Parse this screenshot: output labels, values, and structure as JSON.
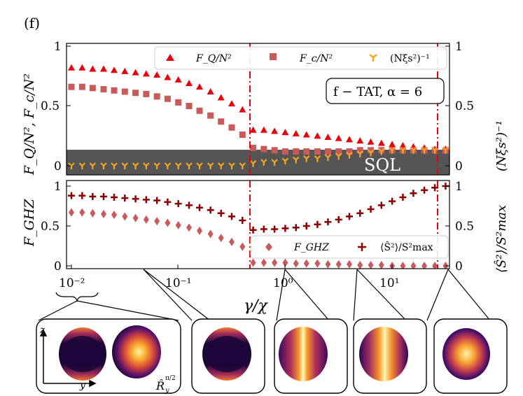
{
  "panel_label": "(f)",
  "colors": {
    "fq": "#e8000b",
    "fc": "#c85a5a",
    "squeeze": "#f5a623",
    "ghz": "#c85a5a",
    "s2": "#8b0000",
    "sql_band": "#555555",
    "vline": "#e8000b"
  },
  "chart_data": [
    {
      "type": "scatter",
      "name": "top-panel",
      "title": "f − TAT, α = 6",
      "xlabel": "γ/χ",
      "ylabel_left": "F_Q/N², F_c/N²",
      "ylabel_right": "(Nξs²)⁻¹",
      "xscale": "log",
      "xlim": [
        0.008,
        45
      ],
      "ylim": [
        -0.1,
        1.05
      ],
      "yticks": [
        0,
        0.5,
        1
      ],
      "ytick_labels": [
        "0",
        "0.5",
        "1"
      ],
      "band": {
        "label": "SQL",
        "ymin": -0.1,
        "ymax": 0.125
      },
      "vlines": [
        0.45,
        30
      ],
      "legend": [
        "F_Q/N²",
        "F_c/N²",
        "(Nξs²)⁻¹"
      ],
      "x": [
        0.01,
        0.0126,
        0.0158,
        0.02,
        0.0251,
        0.0316,
        0.0398,
        0.0501,
        0.0631,
        0.0794,
        0.1,
        0.126,
        0.158,
        0.2,
        0.251,
        0.316,
        0.398,
        0.501,
        0.631,
        0.794,
        1.0,
        1.26,
        1.58,
        2.0,
        2.51,
        3.16,
        3.98,
        5.01,
        6.31,
        7.94,
        10.0,
        12.6,
        15.8,
        20.0,
        25.1,
        31.6,
        39.8
      ],
      "series": [
        {
          "name": "F_Q/N²",
          "marker": "triangle",
          "values": [
            0.82,
            0.82,
            0.81,
            0.81,
            0.8,
            0.79,
            0.78,
            0.77,
            0.76,
            0.74,
            0.72,
            0.69,
            0.66,
            0.62,
            0.57,
            0.52,
            0.47,
            0.3,
            0.3,
            0.29,
            0.28,
            0.27,
            0.26,
            0.25,
            0.24,
            0.23,
            0.22,
            0.21,
            0.2,
            0.19,
            0.18,
            0.17,
            0.16,
            0.15,
            0.14,
            0.14,
            0.14
          ]
        },
        {
          "name": "F_c/N²",
          "marker": "square",
          "values": [
            0.66,
            0.66,
            0.65,
            0.64,
            0.63,
            0.62,
            0.61,
            0.6,
            0.58,
            0.56,
            0.53,
            0.5,
            0.46,
            0.42,
            0.37,
            0.32,
            0.26,
            0.15,
            0.14,
            0.13,
            0.12,
            0.12,
            0.12,
            0.12,
            0.12,
            0.12,
            0.12,
            0.13,
            0.13,
            0.13,
            0.13,
            0.13,
            0.13,
            0.13,
            0.13,
            0.13,
            0.13
          ]
        },
        {
          "name": "(Nξs²)⁻¹",
          "marker": "tri_down",
          "values": [
            0.0,
            0.0,
            0.0,
            0.0,
            0.0,
            0.0,
            0.0,
            0.0,
            0.0,
            0.0,
            0.0,
            0.0,
            0.0,
            0.0,
            0.0,
            0.0,
            0.0,
            0.02,
            0.03,
            0.03,
            0.04,
            0.05,
            0.06,
            0.06,
            0.07,
            0.08,
            0.09,
            0.1,
            0.11,
            0.12,
            0.13,
            0.13,
            0.13,
            0.13,
            0.13,
            0.13,
            0.13
          ]
        }
      ]
    },
    {
      "type": "scatter",
      "name": "bottom-panel",
      "xlabel": "γ/χ",
      "ylabel_left": "F_GHZ",
      "ylabel_right": "⟨Ŝ²⟩/S²max",
      "xscale": "log",
      "xlim": [
        0.008,
        45
      ],
      "ylim": [
        -0.02,
        1.05
      ],
      "yticks": [
        0,
        0.5,
        1
      ],
      "ytick_labels": [
        "0",
        "0.5",
        "1"
      ],
      "xticks": [
        0.01,
        0.1,
        1,
        10
      ],
      "xtick_labels": [
        "10⁻²",
        "10⁻¹",
        "10⁰",
        "10¹"
      ],
      "vlines": [
        0.45,
        30
      ],
      "legend": [
        "F_GHZ",
        "⟨Ŝ²⟩/S²max"
      ],
      "x": [
        0.01,
        0.0126,
        0.0158,
        0.02,
        0.0251,
        0.0316,
        0.0398,
        0.0501,
        0.0631,
        0.0794,
        0.1,
        0.126,
        0.158,
        0.2,
        0.251,
        0.316,
        0.398,
        0.501,
        0.631,
        0.794,
        1.0,
        1.26,
        1.58,
        2.0,
        2.51,
        3.16,
        3.98,
        5.01,
        6.31,
        7.94,
        10.0,
        12.6,
        15.8,
        20.0,
        25.1,
        31.6,
        39.8
      ],
      "series": [
        {
          "name": "F_GHZ",
          "marker": "diamond",
          "values": [
            0.67,
            0.67,
            0.66,
            0.65,
            0.64,
            0.62,
            0.6,
            0.58,
            0.56,
            0.54,
            0.51,
            0.48,
            0.44,
            0.4,
            0.35,
            0.3,
            0.24,
            0.04,
            0.04,
            0.04,
            0.04,
            0.03,
            0.03,
            0.03,
            0.02,
            0.02,
            0.02,
            0.01,
            0.01,
            0.01,
            0.0,
            0.0,
            0.0,
            0.0,
            0.0,
            0.0,
            0.0
          ]
        },
        {
          "name": "⟨Ŝ²⟩/S²max",
          "marker": "plus",
          "values": [
            0.88,
            0.88,
            0.87,
            0.87,
            0.86,
            0.85,
            0.84,
            0.83,
            0.82,
            0.8,
            0.78,
            0.76,
            0.73,
            0.7,
            0.66,
            0.62,
            0.57,
            0.45,
            0.46,
            0.46,
            0.47,
            0.48,
            0.5,
            0.52,
            0.55,
            0.58,
            0.62,
            0.66,
            0.71,
            0.76,
            0.81,
            0.86,
            0.91,
            0.95,
            0.98,
            1.0,
            1.0
          ]
        }
      ]
    }
  ],
  "insets": {
    "axis_z": "z",
    "axis_y": "y",
    "rotation_label": "R̂",
    "rotation_sub": "y",
    "rotation_sup": "π/2"
  }
}
